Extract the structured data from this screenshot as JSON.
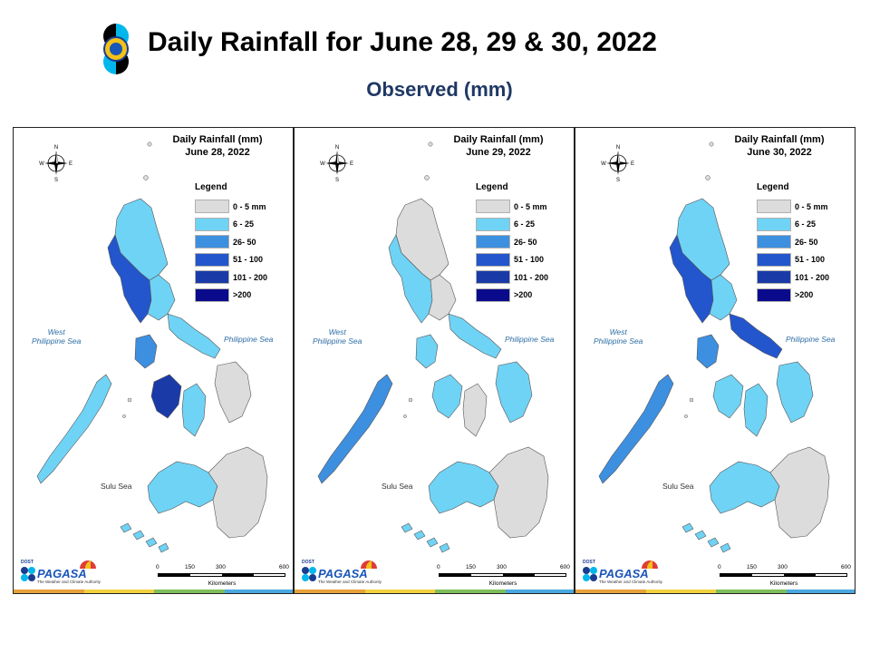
{
  "header": {
    "title": "Daily Rainfall for June 28, 29 & 30, 2022",
    "subtitle": "Observed (mm)"
  },
  "legend": {
    "title": "Legend",
    "items": [
      {
        "label": "0 - 5 mm",
        "color": "#dcdcdc"
      },
      {
        "label": "6 - 25",
        "color": "#6fd3f5"
      },
      {
        "label": "26- 50",
        "color": "#3d8fe0"
      },
      {
        "label": "51 - 100",
        "color": "#2355cc"
      },
      {
        "label": "101 - 200",
        "color": "#1a3aa8"
      },
      {
        "label": ">200",
        "color": "#0a0a8c"
      }
    ]
  },
  "seas": {
    "west_line1": "West",
    "west_line2": "Philippine Sea",
    "philippine": "Philippine Sea",
    "sulu": "Sulu Sea"
  },
  "compass": {
    "n": "N",
    "s": "S",
    "e": "E",
    "w": "W"
  },
  "scale": {
    "ticks": [
      "0",
      "150",
      "300",
      "600"
    ],
    "unit": "Kilometers"
  },
  "pagasa": {
    "dost": "DOST",
    "name": "PAGASA",
    "tagline": "The Weather and Climate Authority"
  },
  "strip_colors": [
    "#e8a23a",
    "#f2d23e",
    "#7fbf5a",
    "#4aa8e0"
  ],
  "maps": [
    {
      "title_line1": "Daily Rainfall (mm)",
      "title_line2": "June 28, 2022",
      "regions": {
        "north": "#6fd3f5",
        "luzon_west": "#2355cc",
        "central": "#6fd3f5",
        "bicol": "#6fd3f5",
        "mindoro": "#3d8fe0",
        "panay": "#1a3aa8",
        "negros": "#6fd3f5",
        "samar": "#dcdcdc",
        "palawan": "#6fd3f5",
        "mindanao_west": "#6fd3f5",
        "mindanao_east": "#dcdcdc"
      }
    },
    {
      "title_line1": "Daily Rainfall (mm)",
      "title_line2": "June 29, 2022",
      "regions": {
        "north": "#dcdcdc",
        "luzon_west": "#6fd3f5",
        "central": "#dcdcdc",
        "bicol": "#6fd3f5",
        "mindoro": "#6fd3f5",
        "panay": "#6fd3f5",
        "negros": "#dcdcdc",
        "samar": "#6fd3f5",
        "palawan": "#3d8fe0",
        "mindanao_west": "#6fd3f5",
        "mindanao_east": "#dcdcdc"
      }
    },
    {
      "title_line1": "Daily Rainfall (mm)",
      "title_line2": "June 30, 2022",
      "regions": {
        "north": "#6fd3f5",
        "luzon_west": "#2355cc",
        "central": "#6fd3f5",
        "bicol": "#2355cc",
        "mindoro": "#3d8fe0",
        "panay": "#6fd3f5",
        "negros": "#6fd3f5",
        "samar": "#6fd3f5",
        "palawan": "#3d8fe0",
        "mindanao_west": "#6fd3f5",
        "mindanao_east": "#dcdcdc"
      }
    }
  ]
}
